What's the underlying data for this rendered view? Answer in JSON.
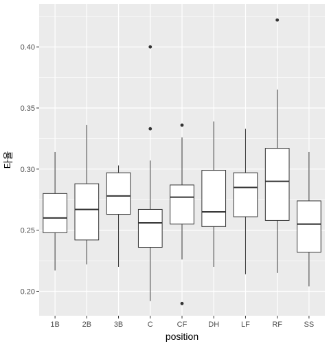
{
  "chart_data": {
    "type": "boxplot",
    "title": "",
    "xlabel": "position",
    "ylabel": "타율",
    "ylim": [
      0.18,
      0.435
    ],
    "yticks": [
      "0.20",
      "0.25",
      "0.30",
      "0.35",
      "0.40"
    ],
    "grid": true,
    "categories": [
      "1B",
      "2B",
      "3B",
      "C",
      "CF",
      "DH",
      "LF",
      "RF",
      "SS"
    ],
    "boxes": [
      {
        "category": "1B",
        "whisker_low": 0.217,
        "q1": 0.248,
        "median": 0.26,
        "q3": 0.28,
        "whisker_high": 0.314,
        "outliers": []
      },
      {
        "category": "2B",
        "whisker_low": 0.222,
        "q1": 0.242,
        "median": 0.267,
        "q3": 0.288,
        "whisker_high": 0.336,
        "outliers": []
      },
      {
        "category": "3B",
        "whisker_low": 0.22,
        "q1": 0.263,
        "median": 0.278,
        "q3": 0.297,
        "whisker_high": 0.303,
        "outliers": []
      },
      {
        "category": "C",
        "whisker_low": 0.192,
        "q1": 0.236,
        "median": 0.256,
        "q3": 0.267,
        "whisker_high": 0.307,
        "outliers": [
          0.333,
          0.4
        ]
      },
      {
        "category": "CF",
        "whisker_low": 0.226,
        "q1": 0.255,
        "median": 0.277,
        "q3": 0.287,
        "whisker_high": 0.326,
        "outliers": [
          0.19,
          0.336
        ]
      },
      {
        "category": "DH",
        "whisker_low": 0.22,
        "q1": 0.253,
        "median": 0.265,
        "q3": 0.299,
        "whisker_high": 0.339,
        "outliers": []
      },
      {
        "category": "LF",
        "whisker_low": 0.214,
        "q1": 0.261,
        "median": 0.285,
        "q3": 0.297,
        "whisker_high": 0.333,
        "outliers": []
      },
      {
        "category": "RF",
        "whisker_low": 0.215,
        "q1": 0.258,
        "median": 0.29,
        "q3": 0.317,
        "whisker_high": 0.365,
        "outliers": [
          0.422
        ]
      },
      {
        "category": "SS",
        "whisker_low": 0.204,
        "q1": 0.232,
        "median": 0.255,
        "q3": 0.274,
        "whisker_high": 0.314,
        "outliers": []
      }
    ],
    "colors": {
      "panel_background": "#ebebeb",
      "grid_line": "#ffffff",
      "box_fill": "#ffffff",
      "box_stroke": "#333333",
      "outlier": "#333333",
      "tick_text": "#4d4d4d"
    }
  }
}
